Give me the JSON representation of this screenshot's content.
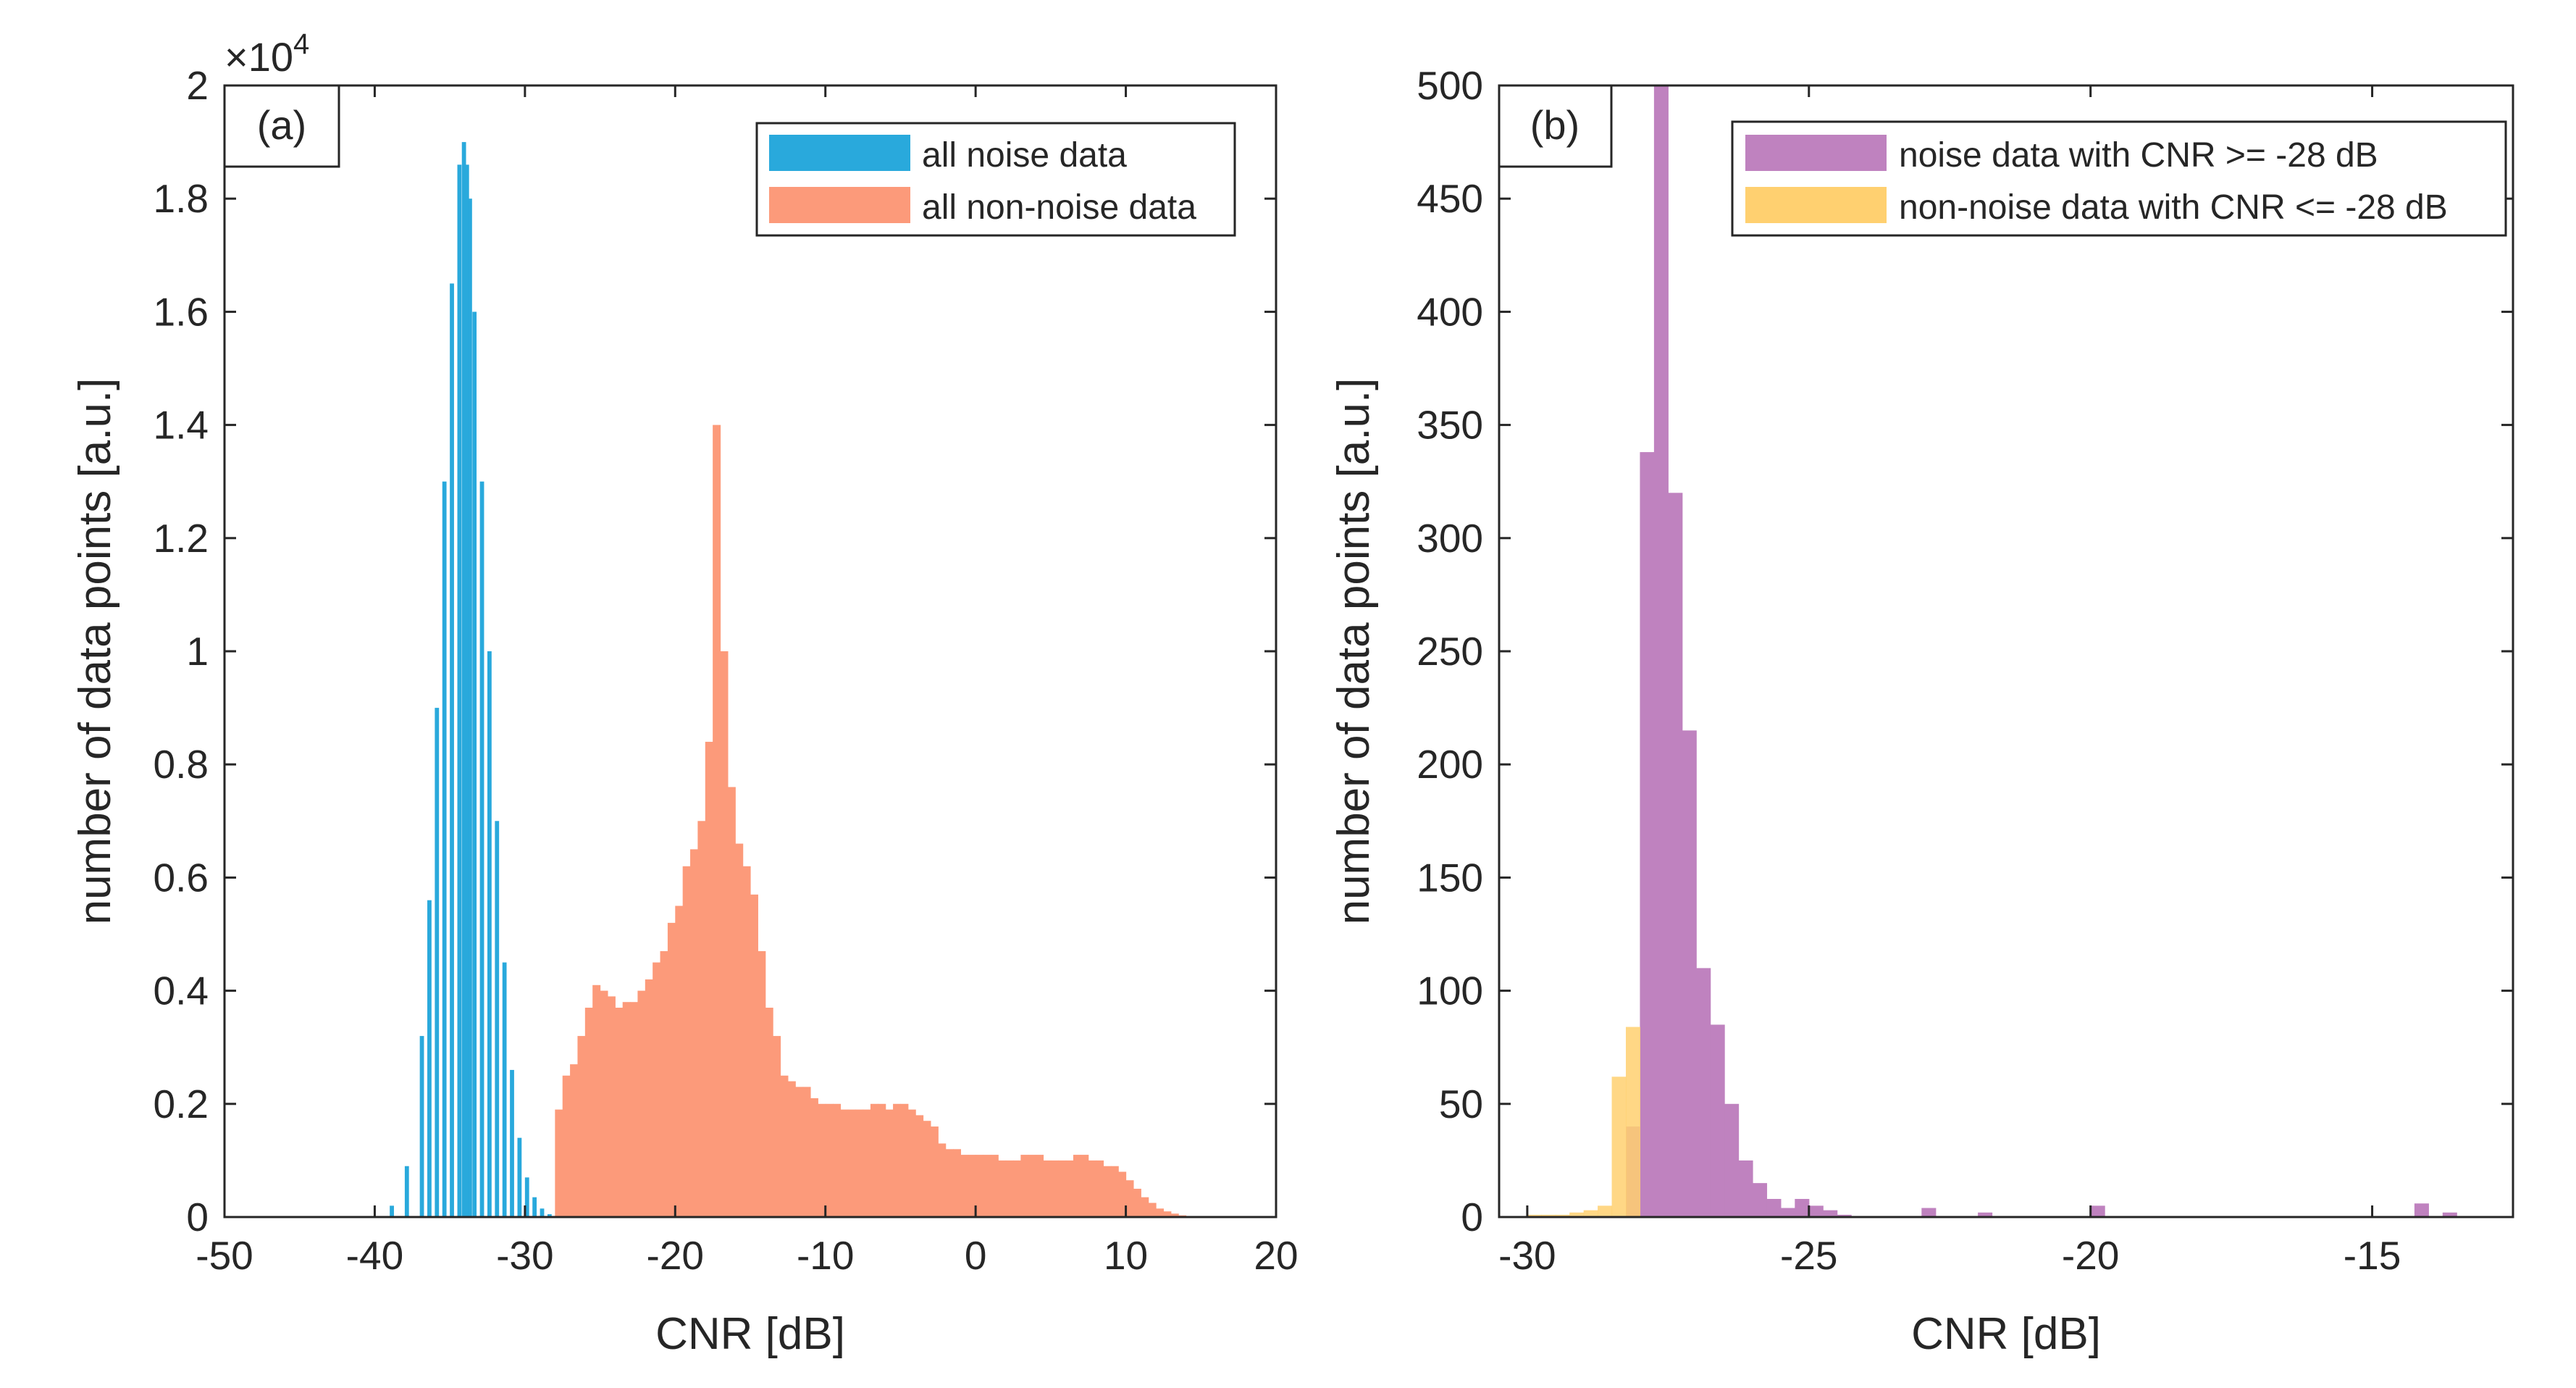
{
  "figure": {
    "multiplier_base": "×10",
    "multiplier_exp": "4"
  },
  "chart_data": [
    {
      "type": "bar",
      "panel": "(a)",
      "title": "",
      "xlabel": "CNR [dB]",
      "ylabel": "number of data points [a.u.]",
      "xlim": [
        -50,
        20
      ],
      "ylim": [
        0,
        20000
      ],
      "xticks": [
        "-50",
        "-40",
        "-30",
        "-20",
        "-10",
        "0",
        "10",
        "20"
      ],
      "yticks": [
        "0",
        "0.2",
        "0.4",
        "0.6",
        "0.8",
        "1",
        "1.2",
        "1.4",
        "1.6",
        "1.8",
        "2"
      ],
      "legend_position": "top-right",
      "series": [
        {
          "name": "all noise data",
          "color": "#29a9dc",
          "bin_width": 0.25,
          "x": [
            -40.0,
            -39.0,
            -38.0,
            -37.0,
            -36.5,
            -36.0,
            -35.5,
            -35.0,
            -34.5,
            -34.2,
            -34.0,
            -33.8,
            -33.5,
            -33.0,
            -32.5,
            -32.0,
            -31.5,
            -31.0,
            -30.5,
            -30.0,
            -29.5,
            -29.0,
            -28.5,
            -28.0
          ],
          "values": [
            0,
            200,
            900,
            3200,
            5600,
            9000,
            13000,
            16500,
            18600,
            19000,
            18600,
            18000,
            16000,
            13000,
            10000,
            7000,
            4500,
            2600,
            1400,
            700,
            350,
            150,
            50,
            0
          ]
        },
        {
          "name": "all non-noise data",
          "color": "#fc9a7a",
          "bin_width": 0.5,
          "x": [
            -28.0,
            -27.5,
            -27.0,
            -26.5,
            -26.0,
            -25.5,
            -25.0,
            -24.5,
            -24.0,
            -23.5,
            -23.0,
            -22.5,
            -22.0,
            -21.5,
            -21.0,
            -20.5,
            -20.0,
            -19.5,
            -19.0,
            -18.5,
            -18.0,
            -17.5,
            -17.0,
            -16.5,
            -16.0,
            -15.5,
            -15.0,
            -14.5,
            -14.0,
            -13.5,
            -13.0,
            -12.5,
            -12.0,
            -11.5,
            -11.0,
            -10.5,
            -10.0,
            -9.5,
            -9.0,
            -8.5,
            -8.0,
            -7.5,
            -7.0,
            -6.5,
            -6.0,
            -5.5,
            -5.0,
            -4.5,
            -4.0,
            -3.5,
            -3.0,
            -2.5,
            -2.0,
            -1.5,
            -1.0,
            -0.5,
            0.0,
            0.5,
            1.0,
            1.5,
            2.0,
            2.5,
            3.0,
            3.5,
            4.0,
            4.5,
            5.0,
            5.5,
            6.0,
            6.5,
            7.0,
            7.5,
            8.0,
            8.5,
            9.0,
            9.5,
            10.0,
            10.5,
            11.0,
            11.5,
            12.0,
            12.5,
            13.0,
            13.5,
            14.0,
            14.5,
            15.0,
            15.5
          ],
          "values": [
            1900,
            2500,
            2700,
            3200,
            3700,
            4100,
            4000,
            3900,
            3700,
            3800,
            3800,
            4000,
            4200,
            4500,
            4700,
            5200,
            5500,
            6200,
            6500,
            7000,
            8400,
            14000,
            10000,
            7600,
            6600,
            6200,
            5700,
            4700,
            3700,
            3200,
            2500,
            2400,
            2300,
            2300,
            2100,
            2000,
            2000,
            2000,
            1900,
            1900,
            1900,
            1900,
            2000,
            2000,
            1900,
            2000,
            2000,
            1900,
            1800,
            1700,
            1600,
            1300,
            1200,
            1200,
            1100,
            1100,
            1100,
            1100,
            1100,
            1000,
            1000,
            1000,
            1100,
            1100,
            1100,
            1000,
            1000,
            1000,
            1000,
            1100,
            1100,
            1000,
            1000,
            900,
            900,
            800,
            650,
            500,
            350,
            250,
            150,
            100,
            60,
            30,
            15,
            8,
            0,
            0
          ]
        }
      ]
    },
    {
      "type": "bar",
      "panel": "(b)",
      "title": "",
      "xlabel": "CNR [dB]",
      "ylabel": "number of data points [a.u.]",
      "xlim": [
        -30.5,
        -12.5
      ],
      "ylim": [
        0,
        500
      ],
      "xticks": [
        "-30",
        "-25",
        "-20",
        "-15"
      ],
      "xtick_values": [
        -30,
        -25,
        -20,
        -15
      ],
      "yticks": [
        "0",
        "50",
        "100",
        "150",
        "200",
        "250",
        "300",
        "350",
        "400",
        "450",
        "500"
      ],
      "legend_position": "top-right",
      "series": [
        {
          "name": "noise data with CNR >= -28 dB",
          "color": "#bf82bf",
          "bin_width": 0.25,
          "x": [
            -28.25,
            -28.0,
            -27.75,
            -27.5,
            -27.25,
            -27.0,
            -26.75,
            -26.5,
            -26.25,
            -26.0,
            -25.75,
            -25.5,
            -25.25,
            -25.0,
            -24.75,
            -24.5,
            -23.0,
            -22.0,
            -20.0,
            -14.25,
            -13.75
          ],
          "values": [
            40,
            338,
            500,
            320,
            215,
            110,
            85,
            50,
            25,
            15,
            8,
            4,
            8,
            5,
            3,
            1,
            4,
            2,
            5,
            6,
            2
          ]
        },
        {
          "name": "non-noise data with CNR <= -28 dB",
          "color": "#ffd070",
          "bin_width": 0.25,
          "x": [
            -30.0,
            -29.75,
            -29.5,
            -29.25,
            -29.0,
            -28.75,
            -28.5,
            -28.25,
            -28.0
          ],
          "values": [
            1,
            1,
            1,
            2,
            3,
            5,
            62,
            84,
            0
          ]
        }
      ]
    }
  ]
}
